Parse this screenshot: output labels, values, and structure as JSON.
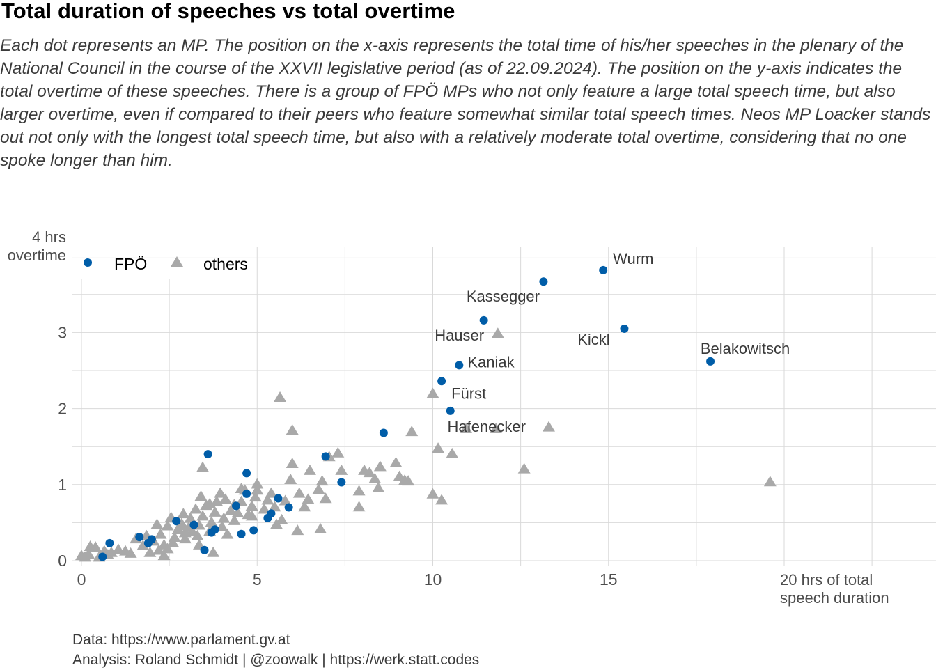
{
  "title": "Total duration of speeches vs total overtime",
  "subtitle": "Each dot represents an MP. The position on the x-axis represents the total time of his/her speeches in the plenary of the National Council in the course of the XXVII legislative period (as of 22.09.2024). The position on the y-axis indicates the total overtime of these speeches. There is a group of FPÖ MPs who not only feature a large total speech time, but also larger overtime, even if compared to their peers who feature somewhat similar total speech times. Neos MP Loacker stands out not only with the longest total speech time, but also with a relatively moderate total overtime, considering that no one spoke longer than him.",
  "caption": {
    "line1": "Data: https://www.parlament.gv.at",
    "line2": "Analysis: Roland Schmidt | @zoowalk | https://werk.statt.codes"
  },
  "colors": {
    "fpo": "#005DA8",
    "others": "#A9A9A9",
    "grid": "#D9D9D9"
  },
  "chart_data": {
    "type": "scatter",
    "x_axis": {
      "label_line1": "20 hrs of total",
      "label_line2": "speech duration",
      "ticks": [
        "0",
        "5",
        "10",
        "15"
      ],
      "range": [
        -0.3,
        24.4
      ]
    },
    "y_axis": {
      "label_line1": "4 hrs",
      "label_line2": "overtime",
      "ticks": [
        "0",
        "1",
        "2",
        "3"
      ],
      "range": [
        -0.07,
        4.2
      ]
    },
    "grid": true,
    "legend": {
      "position": "top-left",
      "entries": [
        "FPÖ",
        "others"
      ]
    },
    "series": [
      {
        "name": "FPÖ",
        "marker": "circle",
        "points": [
          [
            14.85,
            3.82,
            "Wurm"
          ],
          [
            13.15,
            3.67,
            "Kassegger"
          ],
          [
            11.45,
            3.16,
            "Hauser"
          ],
          [
            15.45,
            3.05,
            "Kickl"
          ],
          [
            17.9,
            2.62,
            "Belakowitsch"
          ],
          [
            10.75,
            2.57,
            "Kaniak"
          ],
          [
            10.25,
            2.36,
            "Fürst"
          ],
          [
            10.5,
            1.97,
            "Hafenecker"
          ],
          [
            8.6,
            1.68
          ],
          [
            7.4,
            1.03
          ],
          [
            6.95,
            1.37
          ],
          [
            3.6,
            1.4
          ],
          [
            4.7,
            1.15
          ],
          [
            4.7,
            0.88
          ],
          [
            5.6,
            0.82
          ],
          [
            4.4,
            0.72
          ],
          [
            5.9,
            0.7
          ],
          [
            5.4,
            0.62
          ],
          [
            5.3,
            0.56
          ],
          [
            4.9,
            0.4
          ],
          [
            4.55,
            0.35
          ],
          [
            3.8,
            0.41
          ],
          [
            3.7,
            0.37
          ],
          [
            3.2,
            0.47
          ],
          [
            2.7,
            0.52
          ],
          [
            2.0,
            0.28
          ],
          [
            1.65,
            0.31
          ],
          [
            1.9,
            0.23
          ],
          [
            0.8,
            0.23
          ],
          [
            0.6,
            0.05
          ],
          [
            3.5,
            0.14
          ]
        ]
      },
      {
        "name": "others",
        "marker": "triangle",
        "points": [
          [
            5.65,
            2.14
          ],
          [
            10.0,
            2.19
          ],
          [
            11.85,
            2.98
          ],
          [
            13.3,
            1.75
          ],
          [
            11.8,
            1.73
          ],
          [
            10.95,
            1.73
          ],
          [
            10.15,
            1.47
          ],
          [
            10.55,
            1.4
          ],
          [
            12.6,
            1.2
          ],
          [
            19.6,
            1.03
          ],
          [
            9.4,
            1.69
          ],
          [
            6.0,
            1.71
          ],
          [
            10.0,
            0.87
          ],
          [
            10.25,
            0.79
          ],
          [
            9.2,
            1.05
          ],
          [
            9.3,
            1.04
          ],
          [
            9.05,
            1.1
          ],
          [
            8.95,
            1.28
          ],
          [
            8.5,
            1.23
          ],
          [
            8.35,
            1.07
          ],
          [
            8.2,
            1.15
          ],
          [
            8.05,
            1.18
          ],
          [
            7.9,
            0.91
          ],
          [
            7.9,
            0.7
          ],
          [
            8.45,
            0.95
          ],
          [
            7.3,
            1.41
          ],
          [
            7.4,
            1.18
          ],
          [
            7.05,
            1.36
          ],
          [
            6.85,
            1.04
          ],
          [
            6.95,
            0.81
          ],
          [
            6.75,
            0.93
          ],
          [
            6.5,
            1.18
          ],
          [
            6.45,
            0.8
          ],
          [
            6.35,
            0.7
          ],
          [
            6.2,
            0.88
          ],
          [
            6.15,
            0.39
          ],
          [
            6.0,
            1.27
          ],
          [
            5.95,
            1.06
          ],
          [
            5.8,
            0.78
          ],
          [
            5.7,
            0.53
          ],
          [
            6.8,
            0.41
          ],
          [
            5.5,
            0.7
          ],
          [
            5.4,
            0.88
          ],
          [
            5.3,
            0.79
          ],
          [
            5.0,
            1.0
          ],
          [
            4.95,
            0.83
          ],
          [
            4.85,
            0.71
          ],
          [
            4.75,
            0.6
          ],
          [
            4.65,
            0.92
          ],
          [
            4.55,
            0.77
          ],
          [
            4.45,
            0.62
          ],
          [
            4.35,
            0.52
          ],
          [
            4.25,
            0.65
          ],
          [
            4.1,
            0.8
          ],
          [
            4.05,
            0.55
          ],
          [
            4.0,
            0.44
          ],
          [
            3.95,
            0.88
          ],
          [
            3.85,
            0.77
          ],
          [
            3.8,
            0.63
          ],
          [
            3.7,
            0.5
          ],
          [
            3.65,
            0.74
          ],
          [
            3.55,
            0.72
          ],
          [
            3.45,
            0.58
          ],
          [
            3.4,
            0.84
          ],
          [
            3.35,
            0.46
          ],
          [
            3.3,
            0.32
          ],
          [
            3.25,
            0.67
          ],
          [
            3.1,
            0.55
          ],
          [
            3.05,
            0.43
          ],
          [
            2.95,
            0.36
          ],
          [
            2.9,
            0.61
          ],
          [
            2.85,
            0.48
          ],
          [
            2.75,
            0.4
          ],
          [
            2.65,
            0.3
          ],
          [
            2.55,
            0.56
          ],
          [
            2.45,
            0.45
          ],
          [
            2.35,
            0.2
          ],
          [
            2.25,
            0.34
          ],
          [
            2.2,
            0.13
          ],
          [
            2.15,
            0.47
          ],
          [
            2.05,
            0.25
          ],
          [
            1.95,
            0.1
          ],
          [
            1.85,
            0.32
          ],
          [
            1.75,
            0.19
          ],
          [
            1.55,
            0.28
          ],
          [
            1.4,
            0.09
          ],
          [
            1.25,
            0.12
          ],
          [
            1.05,
            0.14
          ],
          [
            0.85,
            0.1
          ],
          [
            0.75,
            0.07
          ],
          [
            0.65,
            0.12
          ],
          [
            0.5,
            0.04
          ],
          [
            0.4,
            0.17
          ],
          [
            0.25,
            0.18
          ],
          [
            0.2,
            0.08
          ],
          [
            0.1,
            0.04
          ],
          [
            0.0,
            0.06
          ],
          [
            3.45,
            1.22
          ],
          [
            4.55,
            0.94
          ],
          [
            4.35,
            0.73
          ],
          [
            4.85,
            0.58
          ],
          [
            5.2,
            0.67
          ],
          [
            5.55,
            0.47
          ],
          [
            5.0,
            0.92
          ],
          [
            4.15,
            0.34
          ],
          [
            3.75,
            0.1
          ],
          [
            2.35,
            0.06
          ],
          [
            3.35,
            0.2
          ],
          [
            2.95,
            0.28
          ],
          [
            3.65,
            0.38
          ],
          [
            2.6,
            0.23
          ],
          [
            2.45,
            0.15
          ],
          [
            3.15,
            0.38
          ],
          [
            2.8,
            0.45
          ]
        ]
      }
    ]
  }
}
